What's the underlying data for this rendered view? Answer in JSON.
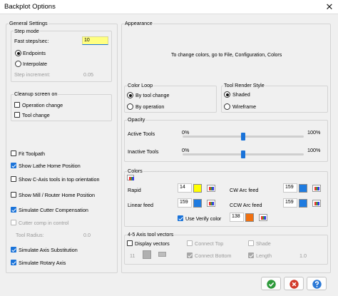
{
  "window": {
    "title": "Backplot Options",
    "close_glyph": "✕"
  },
  "general": {
    "title": "General Settings",
    "step_mode": {
      "title": "Step mode",
      "fast_steps_label": "Fast steps/sec:",
      "fast_steps_value": "10",
      "endpoints_label": "Endpoints",
      "interpolate_label": "Interpolate",
      "step_increment_label": "Step increment:",
      "step_increment_value": "0.05"
    },
    "cleanup": {
      "title": "Cleanup screen on",
      "operation_change": "Operation change",
      "tool_change": "Tool change"
    },
    "options": {
      "fit_toolpath": "Fit Toolpath",
      "show_lathe_home": "Show Lathe Home Position",
      "show_caxis": "Show C-Axis tools in top orientation",
      "show_mill_home": "Show Mill / Router Home Position",
      "simulate_cutter_comp": "Simulate Cutter Compensation",
      "cutter_comp_control": "Cutter comp in control",
      "tool_radius_label": "Tool Radius:",
      "tool_radius_value": "0.0",
      "simulate_axis_sub": "Simulate Axis Substitution",
      "simulate_rotary": "Simulate Rotary Axis"
    }
  },
  "appearance": {
    "title": "Appearance",
    "info": "To change colors, go to File, Configuration, Colors",
    "color_loop": {
      "title": "Color Loop",
      "by_tool_change": "By tool change",
      "by_operation": "By operation"
    },
    "tool_render": {
      "title": "Tool Render Style",
      "shaded": "Shaded",
      "wireframe": "Wireframe"
    },
    "opacity": {
      "title": "Opacity",
      "active_label": "Active Tools",
      "inactive_label": "Inactive Tools",
      "min_label": "0%",
      "max_label": "100%",
      "active_value": 0.5,
      "inactive_value": 0.5
    },
    "colors": {
      "title": "Colors",
      "rapid_label": "Rapid",
      "rapid_value": "14",
      "rapid_color": "#ffff00",
      "linear_label": "Linear feed",
      "linear_value": "159",
      "linear_color": "#1e7be0",
      "cw_label": "CW Arc feed",
      "cw_value": "159",
      "cw_color": "#1e7be0",
      "ccw_label": "CCW Arc feed",
      "ccw_value": "159",
      "ccw_color": "#1e7be0",
      "verify_label": "Use Verify color",
      "verify_value": "138",
      "verify_color": "#f07010"
    },
    "axis_vectors": {
      "title": "4-5 Axis tool vectors",
      "display_vectors": "Display vectors",
      "connect_top": "Connect Top",
      "connect_bottom": "Connect Bottom",
      "shade": "Shade",
      "length": "Length",
      "vector_value": "11",
      "length_value": "1.0"
    }
  }
}
